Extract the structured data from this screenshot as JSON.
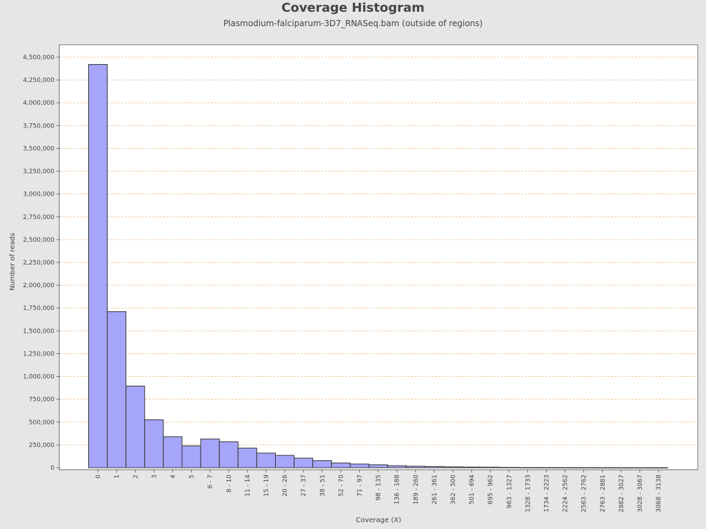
{
  "chart_data": {
    "type": "bar",
    "title": "Coverage Histogram",
    "subtitle": "Plasmodium-falciparum-3D7_RNASeq.bam (outside of regions)",
    "xlabel": "Coverage (X)",
    "ylabel": "Number of reads",
    "ylim": [
      0,
      4600000
    ],
    "yticks": [
      0,
      250000,
      500000,
      750000,
      1000000,
      1250000,
      1500000,
      1750000,
      2000000,
      2250000,
      2500000,
      2750000,
      3000000,
      3250000,
      3500000,
      3750000,
      4000000,
      4250000,
      4500000
    ],
    "ytick_labels": [
      "0",
      "250,000",
      "500,000",
      "750,000",
      "1,000,000",
      "1,250,000",
      "1,500,000",
      "1,750,000",
      "2,000,000",
      "2,250,000",
      "2,500,000",
      "2,750,000",
      "3,000,000",
      "3,250,000",
      "3,500,000",
      "3,750,000",
      "4,000,000",
      "4,250,000",
      "4,500,000"
    ],
    "categories": [
      "0",
      "1",
      "2",
      "3",
      "4",
      "5",
      "6 - 7",
      "8 - 10",
      "11 - 14",
      "15 - 19",
      "20 - 26",
      "27 - 37",
      "38 - 51",
      "52 - 70",
      "71 - 97",
      "98 - 135",
      "136 - 188",
      "189 - 260",
      "261 - 361",
      "362 - 500",
      "501 - 694",
      "695 - 962",
      "963 - 1327",
      "1328 - 1733",
      "1734 - 2223",
      "2224 - 2562",
      "2563 - 2762",
      "2763 - 2881",
      "2882 - 3027",
      "3028 - 3067",
      "3068 - 3138"
    ],
    "values": [
      4420000,
      1710000,
      895000,
      525000,
      340000,
      240000,
      315000,
      285000,
      215000,
      160000,
      135000,
      105000,
      78000,
      52000,
      40000,
      32000,
      22000,
      16000,
      13000,
      9000,
      7000,
      6000,
      4000,
      2000,
      1500,
      1000,
      800,
      600,
      500,
      400,
      300
    ],
    "colors": {
      "bar_fill": "#a5a5f9",
      "bar_stroke": "#333333",
      "grid": "#f0c8a0",
      "plot_bg": "#ffffff",
      "page_bg": "#e6e6e6"
    },
    "grid": true,
    "legend": "none"
  }
}
